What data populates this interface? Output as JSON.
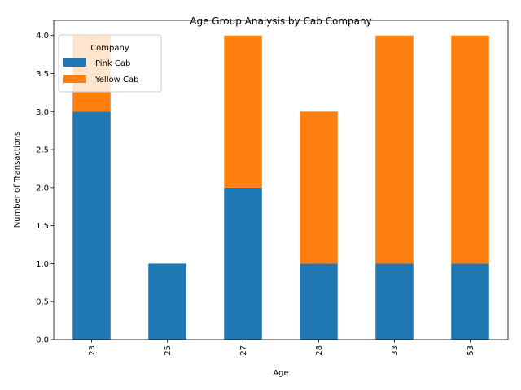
{
  "chart_data": {
    "type": "bar",
    "stacked": true,
    "title": "Age Group Analysis by Cab Company",
    "xlabel": "Age",
    "ylabel": "Number of Transactions",
    "categories": [
      "23",
      "25",
      "27",
      "28",
      "33",
      "53"
    ],
    "series": [
      {
        "name": "Pink Cab",
        "values": [
          3,
          1,
          2,
          1,
          1,
          1
        ],
        "color": "#1f77b4"
      },
      {
        "name": "Yellow Cab",
        "values": [
          1,
          0,
          2,
          2,
          3,
          3
        ],
        "color": "#ff7f0e"
      }
    ],
    "ylim": [
      0,
      4.2
    ],
    "yticks": [
      "0.0",
      "0.5",
      "1.0",
      "1.5",
      "2.0",
      "2.5",
      "3.0",
      "3.5",
      "4.0"
    ],
    "legend": {
      "title": "Company",
      "placement": "top-left"
    },
    "grid": false
  }
}
